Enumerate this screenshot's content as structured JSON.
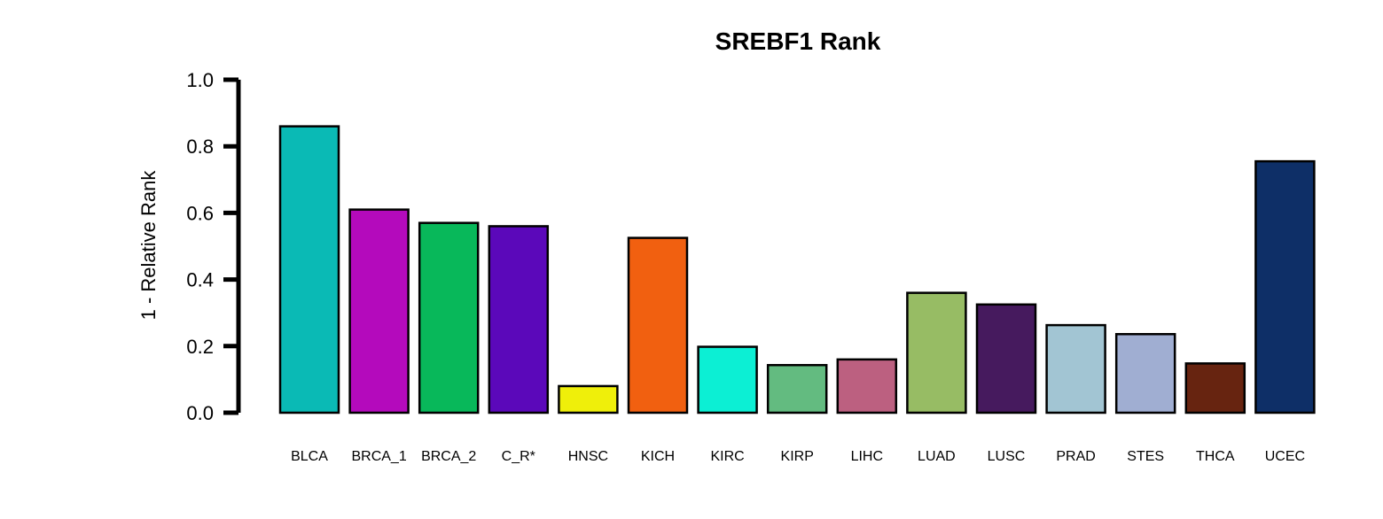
{
  "chart_data": {
    "type": "bar",
    "title": "SREBF1 Rank",
    "xlabel": "",
    "ylabel": "1 - Relative Rank",
    "ylim": [
      0,
      1
    ],
    "yticks": [
      "0.0",
      "0.2",
      "0.4",
      "0.6",
      "0.8",
      "1.0"
    ],
    "categories": [
      "BLCA",
      "BRCA_1",
      "BRCA_2",
      "C_R*",
      "HNSC",
      "KICH",
      "KIRC",
      "KIRP",
      "LIHC",
      "LUAD",
      "LUSC",
      "PRAD",
      "STES",
      "THCA",
      "UCEC"
    ],
    "values": [
      0.86,
      0.61,
      0.57,
      0.56,
      0.08,
      0.525,
      0.198,
      0.143,
      0.16,
      0.36,
      0.325,
      0.263,
      0.236,
      0.148,
      0.755
    ],
    "colors": [
      "#0ABAB5",
      "#B40ABC",
      "#08B85A",
      "#5B08BA",
      "#EFEF0A",
      "#F16010",
      "#0CEFD4",
      "#63BB80",
      "#BC6080",
      "#97BC64",
      "#461A5E",
      "#A2C5D3",
      "#A0AED2",
      "#672410",
      "#0E2F67"
    ],
    "grid": false,
    "legend": "none"
  }
}
